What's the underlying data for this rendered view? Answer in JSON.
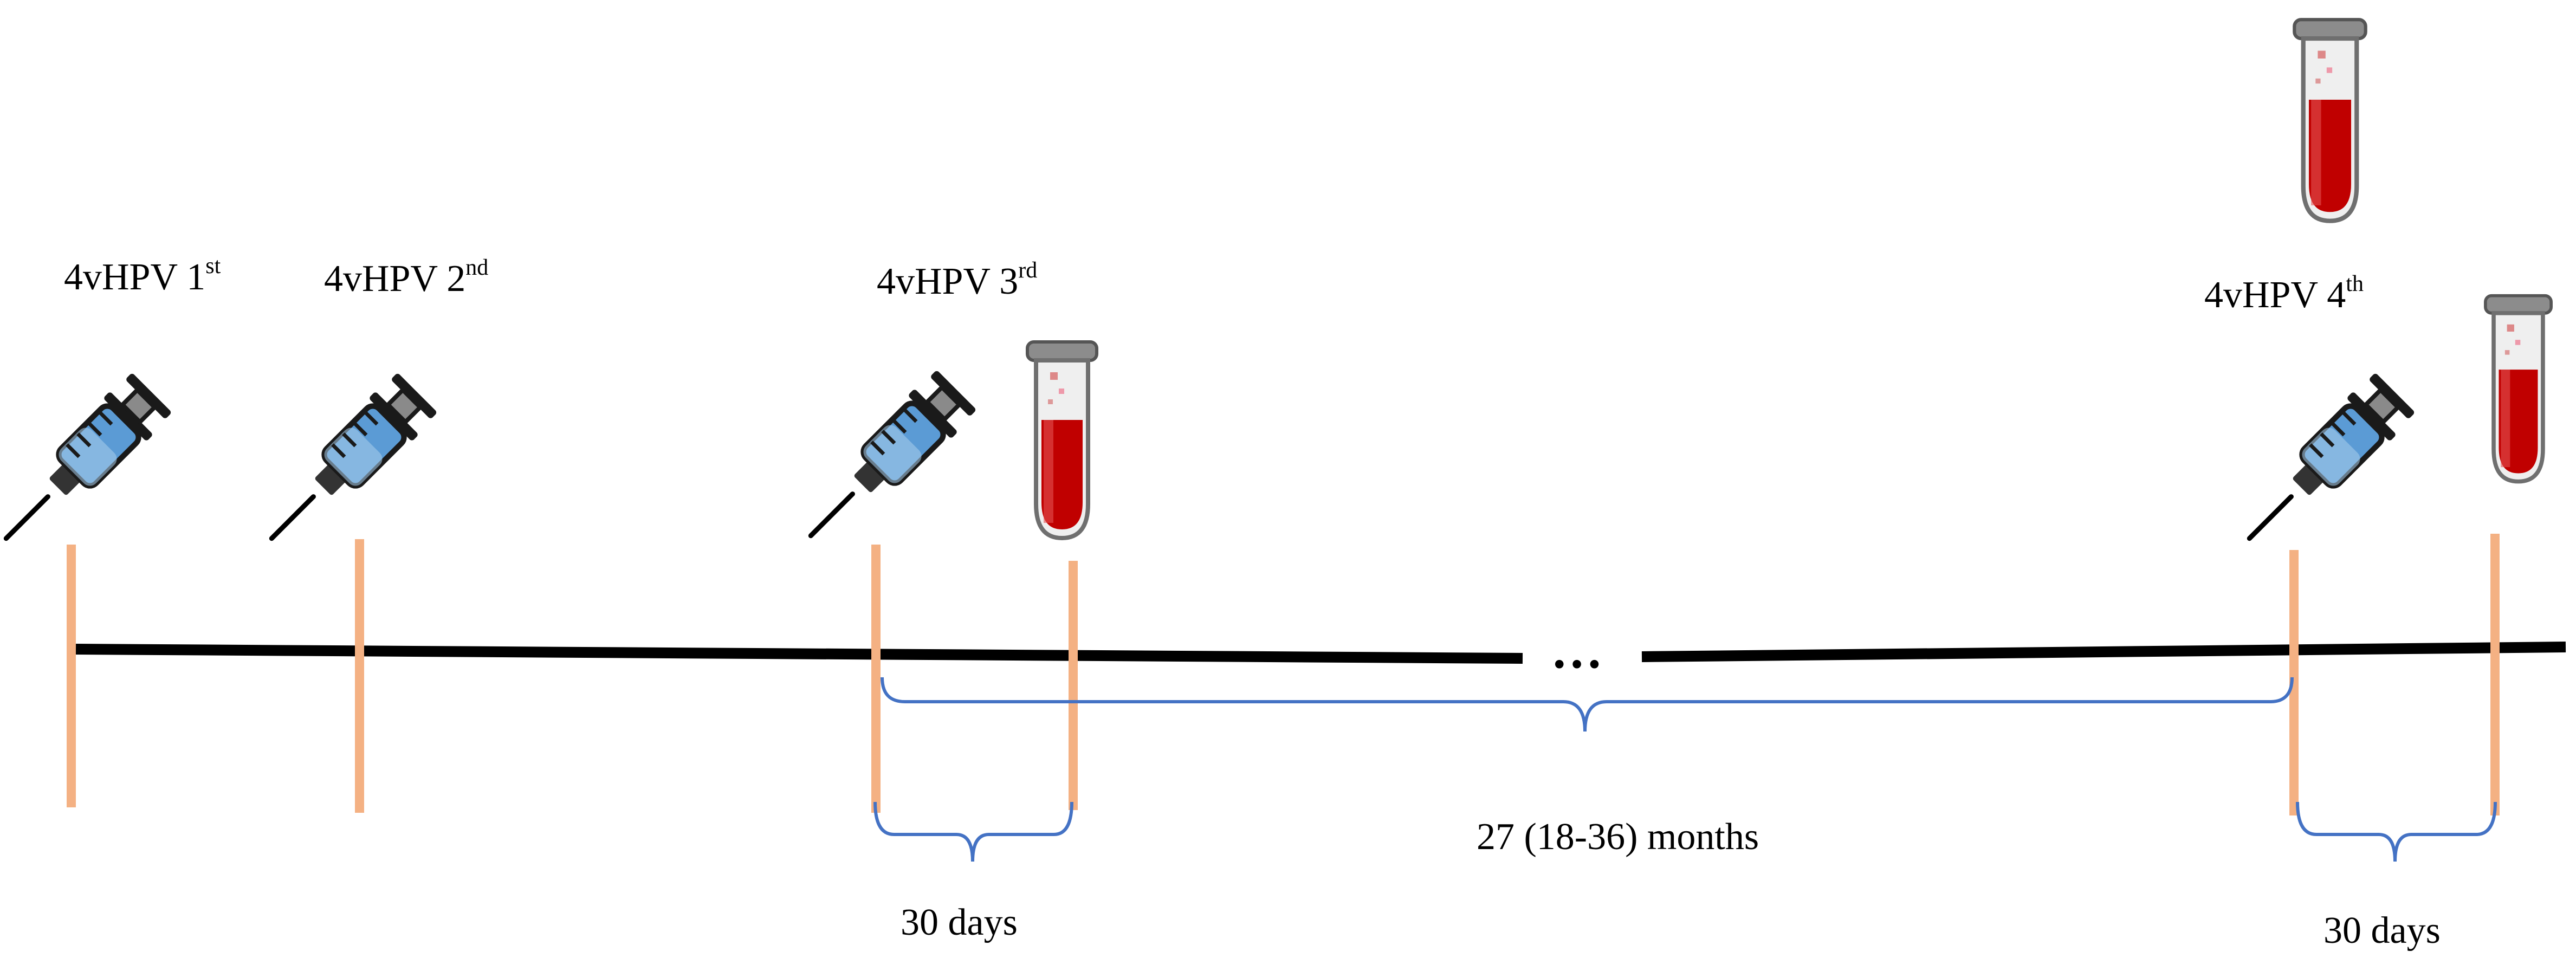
{
  "doses": [
    {
      "name": "4vHPV",
      "ordinal": "1",
      "suffix": "st"
    },
    {
      "name": "4vHPV",
      "ordinal": "2",
      "suffix": "nd"
    },
    {
      "name": "4vHPV",
      "ordinal": "3",
      "suffix": "rd"
    },
    {
      "name": "4vHPV",
      "ordinal": "4",
      "suffix": "th"
    }
  ],
  "intervals": {
    "after_third": "30 days",
    "between_third_and_fourth": "27 (18-36) months",
    "after_fourth": "30 days"
  },
  "ellipsis": "…",
  "colors": {
    "timeline": "#000000",
    "event_marker": "#F4B183",
    "brace": "#4472C4",
    "syringe_fluid": "#5B9BD5",
    "blood": "#C00000"
  },
  "icons": {
    "injection": "syringe-icon",
    "blood_sample": "blood-tube-icon"
  }
}
